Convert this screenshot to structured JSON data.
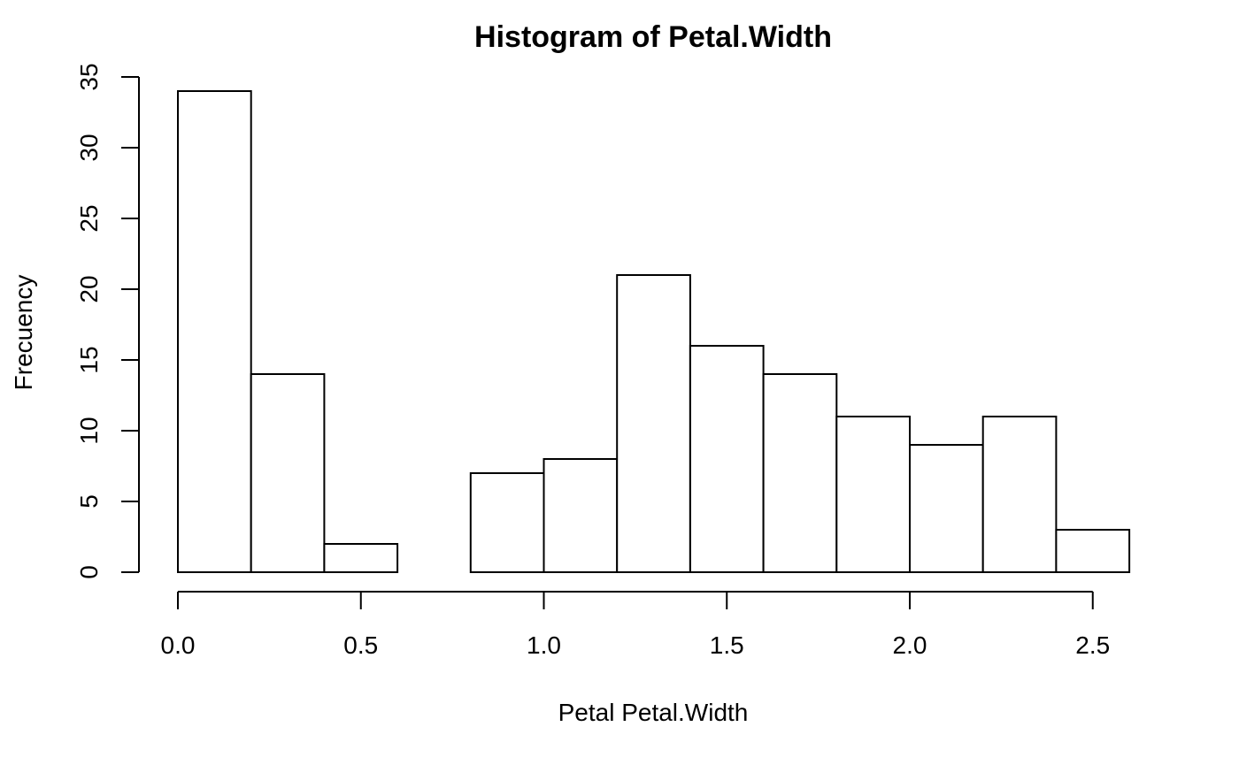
{
  "chart_data": {
    "type": "bar",
    "title": "Histogram of Petal.Width",
    "xlabel": "Petal Petal.Width",
    "ylabel": "Frecuency",
    "bins": [
      {
        "start": 0.0,
        "end": 0.2,
        "count": 34
      },
      {
        "start": 0.2,
        "end": 0.4,
        "count": 14
      },
      {
        "start": 0.4,
        "end": 0.6,
        "count": 2
      },
      {
        "start": 0.6,
        "end": 0.8,
        "count": 0
      },
      {
        "start": 0.8,
        "end": 1.0,
        "count": 7
      },
      {
        "start": 1.0,
        "end": 1.2,
        "count": 8
      },
      {
        "start": 1.2,
        "end": 1.4,
        "count": 21
      },
      {
        "start": 1.4,
        "end": 1.6,
        "count": 16
      },
      {
        "start": 1.6,
        "end": 1.8,
        "count": 14
      },
      {
        "start": 1.8,
        "end": 2.0,
        "count": 11
      },
      {
        "start": 2.0,
        "end": 2.2,
        "count": 9
      },
      {
        "start": 2.2,
        "end": 2.4,
        "count": 11
      },
      {
        "start": 2.4,
        "end": 2.6,
        "count": 3
      }
    ],
    "xlim": [
      0.0,
      2.6
    ],
    "ylim": [
      0,
      35
    ],
    "x_ticks": [
      {
        "value": 0.0,
        "label": "0.0"
      },
      {
        "value": 0.5,
        "label": "0.5"
      },
      {
        "value": 1.0,
        "label": "1.0"
      },
      {
        "value": 1.5,
        "label": "1.5"
      },
      {
        "value": 2.0,
        "label": "2.0"
      },
      {
        "value": 2.5,
        "label": "2.5"
      }
    ],
    "y_ticks": [
      {
        "value": 0,
        "label": "0"
      },
      {
        "value": 5,
        "label": "5"
      },
      {
        "value": 10,
        "label": "10"
      },
      {
        "value": 15,
        "label": "15"
      },
      {
        "value": 20,
        "label": "20"
      },
      {
        "value": 25,
        "label": "25"
      },
      {
        "value": 30,
        "label": "30"
      },
      {
        "value": 35,
        "label": "35"
      }
    ],
    "grid": false,
    "colors": {
      "bar_fill": "#ffffff",
      "bar_stroke": "#000000",
      "axis": "#000000",
      "background": "#ffffff"
    }
  }
}
